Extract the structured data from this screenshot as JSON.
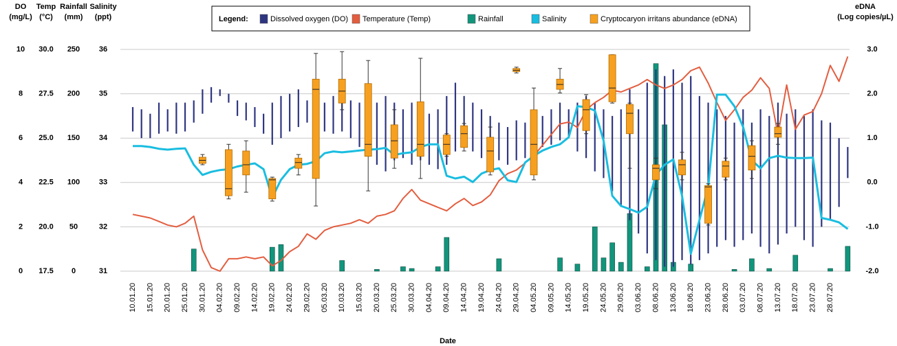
{
  "chart_data": {
    "type": "combo",
    "x_label": "Date",
    "legend_title": "Legend:",
    "grid": true,
    "categories": [
      "10.01.20",
      null,
      "15.01.20",
      null,
      "20.01.20",
      null,
      "25.01.20",
      null,
      "30.01.20",
      null,
      "04.02.20",
      null,
      "09.02.20",
      null,
      "14.02.20",
      null,
      "19.02.20",
      null,
      "24.02.20",
      null,
      "29.02.20",
      null,
      "05.03.20",
      null,
      "10.03.20",
      null,
      "15.03.20",
      null,
      "20.03.20",
      null,
      "25.03.20",
      null,
      "30.03.20",
      null,
      "04.04.20",
      null,
      "09.04.20",
      null,
      "14.04.20",
      null,
      "19.04.20",
      null,
      "24.04.20",
      null,
      "29.04.20",
      null,
      "04.05.20",
      null,
      "09.05.20",
      null,
      "14.05.20",
      null,
      "19.05.20",
      null,
      "24.05.20",
      null,
      "29.05.20",
      null,
      "03.06.20",
      null,
      "08.06.20",
      null,
      "13.06.20",
      null,
      "18.06.20",
      null,
      "23.06.20",
      null,
      "28.06.20",
      null,
      "03.07.20",
      null,
      "08.07.20",
      null,
      "13.07.20",
      null,
      "18.07.20",
      null,
      "23.07.20",
      null,
      "28.07.20",
      null,
      null
    ],
    "axes": {
      "do": {
        "title": "DO",
        "unit": "(mg/L)",
        "ylim": [
          0,
          10
        ],
        "yticks": [
          0,
          2,
          4,
          6,
          8,
          10
        ]
      },
      "temp": {
        "title": "Temp",
        "unit": "(°C)",
        "ylim": [
          17.5,
          30
        ],
        "yticks": [
          17.5,
          {
            "value": 20,
            "label": "20.0"
          },
          22.5,
          {
            "value": 25,
            "label": "25.0"
          },
          27.5,
          {
            "value": 30,
            "label": "30.0"
          }
        ]
      },
      "rain": {
        "title": "Rainfall",
        "unit": "(mm)",
        "ylim": [
          0,
          250
        ],
        "yticks": [
          0,
          50,
          100,
          150,
          200,
          250
        ]
      },
      "sal": {
        "title": "Salinity",
        "unit": "(ppt)",
        "ylim": [
          31,
          36
        ],
        "yticks": [
          31,
          32,
          33,
          34,
          35,
          36
        ]
      },
      "edna": {
        "title": "eDNA",
        "unit": "(Log copies/µL)",
        "ylim": [
          -2,
          3
        ],
        "yticks": [
          {
            "value": -2,
            "label": "-2.0"
          },
          {
            "value": -1,
            "label": "-1.0"
          },
          {
            "value": 0,
            "label": "0.0"
          },
          {
            "value": 1,
            "label": "1.0"
          },
          {
            "value": 2,
            "label": "2.0"
          },
          {
            "value": 3,
            "label": "3.0"
          }
        ]
      }
    },
    "series": [
      {
        "name": "Dissolved oxygen (DO)",
        "type": "range",
        "axis": "do",
        "color": "#2e3580",
        "low": [
          6.3,
          6.0,
          6.0,
          6.2,
          6.3,
          6.2,
          6.3,
          6.7,
          7.1,
          7.6,
          7.9,
          7.6,
          7.0,
          6.8,
          6.5,
          6.2,
          5.7,
          6.0,
          6.3,
          6.5,
          6.7,
          6.5,
          6.3,
          6.2,
          6.3,
          6.0,
          5.6,
          5.4,
          4.8,
          4.5,
          5.0,
          5.1,
          4.8,
          5.0,
          4.8,
          4.6,
          4.8,
          5.4,
          6.0,
          5.4,
          5.1,
          5.1,
          5.0,
          4.8,
          5.0,
          5.1,
          5.3,
          5.6,
          5.7,
          5.9,
          6.0,
          5.4,
          5.1,
          4.5,
          4.2,
          3.6,
          2.9,
          2.3,
          1.7,
          0.8,
          0.5,
          0.2,
          0.2,
          0.5,
          0.3,
          0.5,
          0.8,
          1.1,
          1.4,
          1.1,
          1.4,
          1.7,
          1.1,
          0.8,
          1.2,
          1.7,
          2.0,
          1.4,
          1.1,
          2.0,
          2.3,
          2.9,
          4.2
        ],
        "high": [
          7.4,
          7.3,
          7.1,
          7.6,
          7.3,
          7.6,
          7.6,
          7.7,
          8.2,
          8.3,
          8.2,
          8.0,
          7.7,
          7.6,
          7.4,
          7.1,
          7.6,
          7.9,
          8.0,
          8.2,
          7.7,
          7.6,
          7.6,
          7.9,
          7.9,
          7.7,
          7.6,
          7.9,
          7.6,
          7.9,
          7.6,
          7.3,
          7.6,
          7.0,
          7.1,
          7.3,
          7.9,
          8.5,
          7.9,
          7.6,
          7.3,
          7.0,
          6.7,
          6.5,
          6.8,
          6.7,
          6.8,
          7.0,
          7.3,
          7.6,
          7.3,
          7.6,
          7.9,
          7.6,
          7.3,
          7.0,
          7.3,
          8.2,
          7.3,
          8.5,
          9.1,
          8.8,
          9.1,
          8.5,
          8.8,
          7.9,
          7.6,
          7.3,
          7.0,
          6.7,
          7.3,
          6.7,
          7.3,
          7.0,
          7.6,
          7.1,
          7.3,
          7.0,
          7.3,
          6.8,
          6.7,
          6.0,
          5.6
        ]
      },
      {
        "name": "Temperature (Temp)",
        "type": "line",
        "axis": "temp",
        "color": "#e35d3f",
        "values": [
          20.7,
          20.6,
          20.5,
          20.3,
          20.1,
          20.0,
          20.2,
          20.6,
          18.7,
          17.7,
          17.5,
          18.2,
          18.2,
          18.3,
          18.2,
          18.3,
          17.8,
          18.1,
          18.6,
          18.9,
          19.6,
          19.3,
          19.8,
          20.0,
          20.1,
          20.2,
          20.4,
          20.2,
          20.6,
          20.7,
          20.9,
          21.6,
          22.1,
          21.5,
          21.3,
          21.1,
          20.9,
          21.3,
          21.6,
          21.2,
          21.4,
          21.8,
          22.6,
          23.0,
          23.2,
          23.6,
          24.0,
          24.6,
          25.2,
          25.8,
          25.9,
          25.6,
          26.6,
          27.0,
          27.3,
          27.7,
          27.6,
          27.8,
          28.0,
          28.3,
          28.0,
          27.8,
          28.0,
          28.3,
          28.8,
          29.0,
          28.1,
          27.0,
          26.0,
          26.6,
          27.3,
          27.7,
          28.4,
          27.8,
          25.2,
          28.0,
          25.5,
          26.3,
          26.5,
          27.5,
          29.1,
          28.2,
          29.6
        ]
      },
      {
        "name": "Rainfall",
        "type": "bar",
        "axis": "rain",
        "color": "#12957c",
        "values": [
          0,
          0,
          0,
          0,
          0,
          0,
          0,
          25,
          0,
          0,
          0,
          0,
          0,
          0,
          0,
          0,
          27,
          30,
          0,
          0,
          0,
          0,
          0,
          0,
          12,
          0,
          0,
          0,
          2,
          0,
          0,
          5,
          3,
          0,
          0,
          5,
          38,
          0,
          0,
          0,
          0,
          0,
          14,
          0,
          0,
          0,
          0,
          0,
          0,
          15,
          0,
          8,
          0,
          50,
          15,
          32,
          10,
          65,
          0,
          5,
          234,
          165,
          10,
          0,
          8,
          0,
          0,
          0,
          0,
          2,
          0,
          14,
          0,
          3,
          0,
          0,
          18,
          0,
          0,
          0,
          3,
          0,
          28
        ]
      },
      {
        "name": "Salinity",
        "type": "line",
        "axis": "sal",
        "color": "#19bde0",
        "values": [
          33.82,
          33.82,
          33.8,
          33.76,
          33.74,
          33.76,
          33.77,
          33.4,
          33.17,
          33.24,
          33.28,
          33.3,
          33.36,
          33.4,
          33.43,
          33.3,
          32.66,
          33.06,
          33.3,
          33.4,
          33.42,
          33.48,
          33.66,
          33.7,
          33.68,
          33.7,
          33.72,
          33.74,
          33.75,
          33.78,
          33.62,
          33.66,
          33.68,
          33.8,
          33.86,
          33.86,
          33.15,
          33.09,
          33.13,
          33.01,
          33.2,
          33.28,
          33.32,
          33.05,
          33.01,
          33.45,
          33.6,
          33.72,
          33.8,
          33.86,
          34.02,
          34.72,
          34.7,
          34.62,
          33.94,
          32.7,
          32.47,
          32.4,
          32.32,
          32.45,
          33.17,
          33.4,
          33.52,
          32.7,
          31.39,
          32.16,
          32.9,
          34.98,
          34.98,
          34.72,
          34.25,
          33.5,
          33.32,
          33.55,
          33.6,
          33.56,
          33.55,
          33.55,
          33.56,
          32.2,
          32.16,
          32.1,
          31.95
        ]
      },
      {
        "name": "Cryptocaryon irritans abundance (eDNA)",
        "type": "box",
        "axis": "edna",
        "color": "#f7a020",
        "min": [
          null,
          null,
          null,
          null,
          null,
          null,
          null,
          null,
          0.4,
          null,
          null,
          -0.37,
          null,
          -0.22,
          null,
          null,
          -0.42,
          null,
          null,
          0.17,
          null,
          -0.53,
          null,
          null,
          1.64,
          null,
          null,
          -0.19,
          null,
          null,
          0.32,
          null,
          null,
          0.09,
          null,
          null,
          0.59,
          null,
          0.71,
          null,
          null,
          0.17,
          null,
          null,
          2.47,
          null,
          0.06,
          null,
          null,
          2.02,
          null,
          null,
          1.1,
          null,
          null,
          1.79,
          null,
          0.32,
          null,
          null,
          -0.14,
          null,
          null,
          0.06,
          null,
          null,
          -0.96,
          null,
          0.06,
          null,
          null,
          0.09,
          null,
          null,
          0.86,
          null,
          null,
          null,
          null,
          null,
          null,
          null,
          null
        ],
        "q1": [
          null,
          null,
          null,
          null,
          null,
          null,
          null,
          null,
          0.43,
          null,
          null,
          -0.3,
          null,
          0.17,
          null,
          null,
          -0.37,
          null,
          null,
          0.32,
          null,
          0.09,
          null,
          null,
          1.79,
          null,
          null,
          0.59,
          null,
          null,
          0.55,
          null,
          null,
          0.59,
          null,
          null,
          0.63,
          null,
          0.79,
          null,
          null,
          0.24,
          null,
          null,
          2.5,
          null,
          0.17,
          null,
          null,
          2.1,
          null,
          null,
          1.17,
          null,
          null,
          1.82,
          null,
          1.1,
          null,
          null,
          0.06,
          null,
          null,
          0.17,
          null,
          null,
          -0.92,
          null,
          0.12,
          null,
          null,
          0.28,
          null,
          null,
          1.02,
          null,
          null,
          null,
          null,
          null,
          null,
          null,
          null
        ],
        "median": [
          null,
          null,
          null,
          null,
          null,
          null,
          null,
          null,
          0.5,
          null,
          null,
          -0.14,
          null,
          0.4,
          null,
          null,
          0.06,
          null,
          null,
          0.45,
          null,
          2.1,
          null,
          null,
          2.06,
          null,
          null,
          0.86,
          null,
          null,
          0.94,
          null,
          null,
          0.86,
          null,
          null,
          0.86,
          null,
          1.1,
          null,
          null,
          0.71,
          null,
          null,
          2.53,
          null,
          0.86,
          null,
          null,
          2.21,
          null,
          null,
          1.64,
          null,
          null,
          2.13,
          null,
          1.56,
          null,
          null,
          0.32,
          null,
          null,
          0.4,
          null,
          null,
          -0.1,
          null,
          0.37,
          null,
          null,
          0.59,
          null,
          null,
          1.1,
          null,
          null,
          null,
          null,
          null,
          null,
          null,
          null
        ],
        "q3": [
          null,
          null,
          null,
          null,
          null,
          null,
          null,
          null,
          0.57,
          null,
          null,
          0.74,
          null,
          0.71,
          null,
          null,
          0.09,
          null,
          null,
          0.55,
          null,
          2.33,
          null,
          null,
          2.33,
          null,
          null,
          2.23,
          null,
          null,
          1.3,
          null,
          null,
          1.82,
          null,
          null,
          1.07,
          null,
          1.28,
          null,
          null,
          1.02,
          null,
          null,
          2.57,
          null,
          1.64,
          null,
          null,
          2.33,
          null,
          null,
          1.87,
          null,
          null,
          2.88,
          null,
          1.76,
          null,
          null,
          0.4,
          null,
          null,
          0.51,
          null,
          null,
          -0.07,
          null,
          0.48,
          null,
          null,
          0.83,
          null,
          null,
          1.25,
          null,
          null,
          null,
          null,
          null,
          null,
          null,
          null
        ],
        "max": [
          null,
          null,
          null,
          null,
          null,
          null,
          null,
          null,
          0.63,
          null,
          null,
          0.86,
          null,
          0.94,
          null,
          null,
          0.12,
          null,
          null,
          0.63,
          null,
          2.91,
          null,
          null,
          2.95,
          null,
          null,
          2.75,
          null,
          null,
          1.64,
          null,
          null,
          2.8,
          null,
          null,
          1.1,
          null,
          1.33,
          null,
          null,
          1.25,
          null,
          null,
          2.6,
          null,
          2.13,
          null,
          null,
          2.57,
          null,
          null,
          1.98,
          null,
          null,
          2.88,
          null,
          1.79,
          null,
          null,
          0.55,
          null,
          null,
          0.68,
          null,
          null,
          -0.03,
          null,
          0.55,
          null,
          null,
          0.94,
          null,
          null,
          1.33,
          null,
          null,
          null,
          null,
          null,
          null,
          null,
          null
        ]
      }
    ]
  }
}
